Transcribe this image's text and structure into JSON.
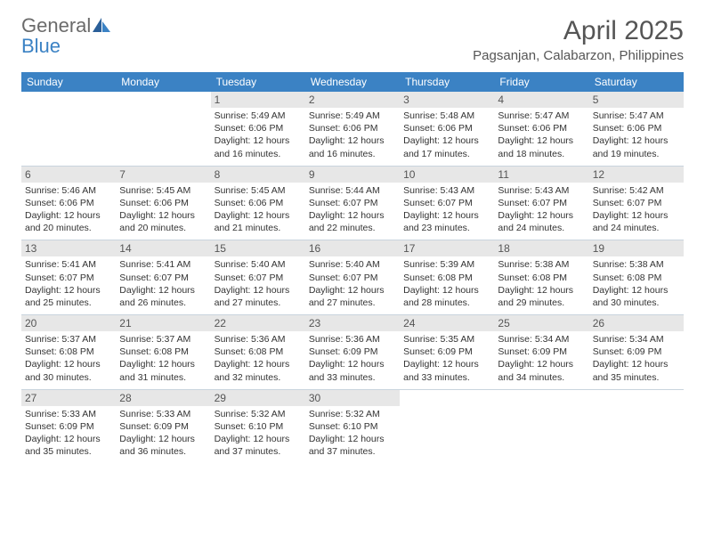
{
  "brand": {
    "part1": "General",
    "part2": "Blue"
  },
  "title": "April 2025",
  "location": "Pagsanjan, Calabarzon, Philippines",
  "colors": {
    "header_bg": "#3b82c4",
    "header_text": "#ffffff",
    "daynum_bg": "#e7e7e7",
    "text_muted": "#555555",
    "text_body": "#333333",
    "row_border": "#c9d4de"
  },
  "weekdays": [
    "Sunday",
    "Monday",
    "Tuesday",
    "Wednesday",
    "Thursday",
    "Friday",
    "Saturday"
  ],
  "weeks": [
    [
      null,
      null,
      {
        "n": "1",
        "sr": "5:49 AM",
        "ss": "6:06 PM",
        "dl": "12 hours and 16 minutes."
      },
      {
        "n": "2",
        "sr": "5:49 AM",
        "ss": "6:06 PM",
        "dl": "12 hours and 16 minutes."
      },
      {
        "n": "3",
        "sr": "5:48 AM",
        "ss": "6:06 PM",
        "dl": "12 hours and 17 minutes."
      },
      {
        "n": "4",
        "sr": "5:47 AM",
        "ss": "6:06 PM",
        "dl": "12 hours and 18 minutes."
      },
      {
        "n": "5",
        "sr": "5:47 AM",
        "ss": "6:06 PM",
        "dl": "12 hours and 19 minutes."
      }
    ],
    [
      {
        "n": "6",
        "sr": "5:46 AM",
        "ss": "6:06 PM",
        "dl": "12 hours and 20 minutes."
      },
      {
        "n": "7",
        "sr": "5:45 AM",
        "ss": "6:06 PM",
        "dl": "12 hours and 20 minutes."
      },
      {
        "n": "8",
        "sr": "5:45 AM",
        "ss": "6:06 PM",
        "dl": "12 hours and 21 minutes."
      },
      {
        "n": "9",
        "sr": "5:44 AM",
        "ss": "6:07 PM",
        "dl": "12 hours and 22 minutes."
      },
      {
        "n": "10",
        "sr": "5:43 AM",
        "ss": "6:07 PM",
        "dl": "12 hours and 23 minutes."
      },
      {
        "n": "11",
        "sr": "5:43 AM",
        "ss": "6:07 PM",
        "dl": "12 hours and 24 minutes."
      },
      {
        "n": "12",
        "sr": "5:42 AM",
        "ss": "6:07 PM",
        "dl": "12 hours and 24 minutes."
      }
    ],
    [
      {
        "n": "13",
        "sr": "5:41 AM",
        "ss": "6:07 PM",
        "dl": "12 hours and 25 minutes."
      },
      {
        "n": "14",
        "sr": "5:41 AM",
        "ss": "6:07 PM",
        "dl": "12 hours and 26 minutes."
      },
      {
        "n": "15",
        "sr": "5:40 AM",
        "ss": "6:07 PM",
        "dl": "12 hours and 27 minutes."
      },
      {
        "n": "16",
        "sr": "5:40 AM",
        "ss": "6:07 PM",
        "dl": "12 hours and 27 minutes."
      },
      {
        "n": "17",
        "sr": "5:39 AM",
        "ss": "6:08 PM",
        "dl": "12 hours and 28 minutes."
      },
      {
        "n": "18",
        "sr": "5:38 AM",
        "ss": "6:08 PM",
        "dl": "12 hours and 29 minutes."
      },
      {
        "n": "19",
        "sr": "5:38 AM",
        "ss": "6:08 PM",
        "dl": "12 hours and 30 minutes."
      }
    ],
    [
      {
        "n": "20",
        "sr": "5:37 AM",
        "ss": "6:08 PM",
        "dl": "12 hours and 30 minutes."
      },
      {
        "n": "21",
        "sr": "5:37 AM",
        "ss": "6:08 PM",
        "dl": "12 hours and 31 minutes."
      },
      {
        "n": "22",
        "sr": "5:36 AM",
        "ss": "6:08 PM",
        "dl": "12 hours and 32 minutes."
      },
      {
        "n": "23",
        "sr": "5:36 AM",
        "ss": "6:09 PM",
        "dl": "12 hours and 33 minutes."
      },
      {
        "n": "24",
        "sr": "5:35 AM",
        "ss": "6:09 PM",
        "dl": "12 hours and 33 minutes."
      },
      {
        "n": "25",
        "sr": "5:34 AM",
        "ss": "6:09 PM",
        "dl": "12 hours and 34 minutes."
      },
      {
        "n": "26",
        "sr": "5:34 AM",
        "ss": "6:09 PM",
        "dl": "12 hours and 35 minutes."
      }
    ],
    [
      {
        "n": "27",
        "sr": "5:33 AM",
        "ss": "6:09 PM",
        "dl": "12 hours and 35 minutes."
      },
      {
        "n": "28",
        "sr": "5:33 AM",
        "ss": "6:09 PM",
        "dl": "12 hours and 36 minutes."
      },
      {
        "n": "29",
        "sr": "5:32 AM",
        "ss": "6:10 PM",
        "dl": "12 hours and 37 minutes."
      },
      {
        "n": "30",
        "sr": "5:32 AM",
        "ss": "6:10 PM",
        "dl": "12 hours and 37 minutes."
      },
      null,
      null,
      null
    ]
  ],
  "labels": {
    "sunrise": "Sunrise:",
    "sunset": "Sunset:",
    "daylight": "Daylight:"
  }
}
